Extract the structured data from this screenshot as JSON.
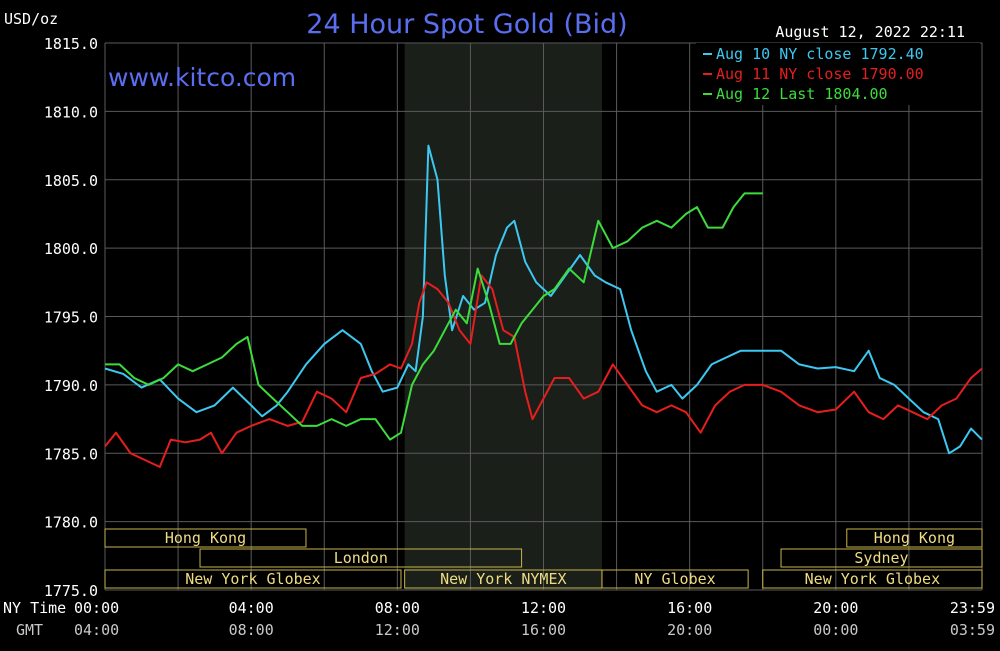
{
  "header": {
    "unit": "USD/oz",
    "title": "24 Hour Spot Gold (Bid)",
    "timestamp": "August 12, 2022 22:11",
    "watermark": "www.kitco.com"
  },
  "colors": {
    "background": "#000000",
    "grid": "#5a5a5a",
    "title": "#5a6ef0",
    "text": "#ffffff",
    "session_text": "#f0dc80",
    "session_line": "#c8b44a",
    "shaded_session": "#1a1f1a",
    "aug10": "#3cc8f0",
    "aug11": "#e61e1e",
    "aug12": "#3cdc3c"
  },
  "chart_data": {
    "type": "line",
    "title": "24 Hour Spot Gold (Bid)",
    "ylabel": "USD/oz",
    "xlabel": "",
    "ylim": [
      1775.0,
      1815.0
    ],
    "xlim": [
      0,
      24
    ],
    "yticks": [
      "1815.0",
      "1810.0",
      "1805.0",
      "1800.0",
      "1795.0",
      "1790.0",
      "1785.0",
      "1780.0",
      "1775.0"
    ],
    "grid": true,
    "legend_position": "top-right",
    "x_axis_rows": [
      {
        "label": "NY Time",
        "ticks": [
          "00:00",
          "04:00",
          "08:00",
          "12:00",
          "16:00",
          "20:00",
          "23:59"
        ]
      },
      {
        "label": "GMT",
        "ticks": [
          "04:00",
          "08:00",
          "12:00",
          "16:00",
          "20:00",
          "00:00",
          "03:59"
        ]
      }
    ],
    "shaded_hours": [
      8.2,
      13.6
    ],
    "sessions": [
      {
        "label": "Hong Kong",
        "start": 0,
        "end": 5.5,
        "row": 1
      },
      {
        "label": "Hong Kong",
        "start": 20.3,
        "end": 24,
        "row": 1
      },
      {
        "label": "London",
        "start": 2.6,
        "end": 11.4,
        "row": 2
      },
      {
        "label": "Sydney",
        "start": 18.5,
        "end": 24,
        "row": 2
      },
      {
        "label": "New York Globex",
        "start": 0,
        "end": 8.1,
        "row": 3
      },
      {
        "label": "New York NYMEX",
        "start": 8.2,
        "end": 13.6,
        "row": 3
      },
      {
        "label": "NY Globex",
        "start": 13.6,
        "end": 17.6,
        "row": 3
      },
      {
        "label": "New York Globex",
        "start": 18.0,
        "end": 24,
        "row": 3
      }
    ],
    "series": [
      {
        "name": "Aug 10 NY close 1792.40",
        "color": "#3cc8f0",
        "points": [
          [
            0,
            1791.2
          ],
          [
            0.5,
            1790.8
          ],
          [
            1,
            1789.8
          ],
          [
            1.5,
            1790.4
          ],
          [
            2,
            1789.0
          ],
          [
            2.5,
            1788.0
          ],
          [
            3,
            1788.5
          ],
          [
            3.5,
            1789.8
          ],
          [
            4,
            1788.5
          ],
          [
            4.3,
            1787.7
          ],
          [
            4.7,
            1788.5
          ],
          [
            5,
            1789.5
          ],
          [
            5.5,
            1791.5
          ],
          [
            6,
            1793.0
          ],
          [
            6.5,
            1794.0
          ],
          [
            7,
            1793.0
          ],
          [
            7.3,
            1791.0
          ],
          [
            7.6,
            1789.5
          ],
          [
            8,
            1789.8
          ],
          [
            8.3,
            1791.5
          ],
          [
            8.5,
            1791.0
          ],
          [
            8.7,
            1795.0
          ],
          [
            8.85,
            1807.5
          ],
          [
            9.1,
            1805.0
          ],
          [
            9.3,
            1798.0
          ],
          [
            9.5,
            1794.0
          ],
          [
            9.8,
            1796.5
          ],
          [
            10.1,
            1795.5
          ],
          [
            10.4,
            1796.0
          ],
          [
            10.7,
            1799.5
          ],
          [
            11.0,
            1801.5
          ],
          [
            11.2,
            1802.0
          ],
          [
            11.5,
            1799.0
          ],
          [
            11.8,
            1797.5
          ],
          [
            12.2,
            1796.5
          ],
          [
            12.6,
            1798.0
          ],
          [
            13.0,
            1799.5
          ],
          [
            13.4,
            1798.0
          ],
          [
            13.7,
            1797.5
          ],
          [
            14.1,
            1797.0
          ],
          [
            14.4,
            1794.0
          ],
          [
            14.8,
            1791.0
          ],
          [
            15.1,
            1789.5
          ],
          [
            15.5,
            1790.0
          ],
          [
            15.8,
            1789.0
          ],
          [
            16.2,
            1790.0
          ],
          [
            16.6,
            1791.5
          ],
          [
            17.0,
            1792.0
          ],
          [
            17.4,
            1792.5
          ],
          [
            18.0,
            1792.5
          ],
          [
            18.5,
            1792.5
          ],
          [
            19.0,
            1791.5
          ],
          [
            19.5,
            1791.2
          ],
          [
            20.0,
            1791.3
          ],
          [
            20.5,
            1791.0
          ],
          [
            20.9,
            1792.5
          ],
          [
            21.2,
            1790.5
          ],
          [
            21.6,
            1790.0
          ],
          [
            22.0,
            1789.0
          ],
          [
            22.4,
            1788.0
          ],
          [
            22.8,
            1787.5
          ],
          [
            23.1,
            1785.0
          ],
          [
            23.4,
            1785.5
          ],
          [
            23.7,
            1786.8
          ],
          [
            24.0,
            1786.0
          ]
        ]
      },
      {
        "name": "Aug 11 NY close 1790.00",
        "color": "#e61e1e",
        "points": [
          [
            0,
            1785.5
          ],
          [
            0.3,
            1786.5
          ],
          [
            0.7,
            1785.0
          ],
          [
            1.1,
            1784.5
          ],
          [
            1.5,
            1784.0
          ],
          [
            1.8,
            1786.0
          ],
          [
            2.2,
            1785.8
          ],
          [
            2.6,
            1786.0
          ],
          [
            2.9,
            1786.5
          ],
          [
            3.2,
            1785.0
          ],
          [
            3.6,
            1786.5
          ],
          [
            4,
            1787.0
          ],
          [
            4.5,
            1787.5
          ],
          [
            5,
            1787.0
          ],
          [
            5.4,
            1787.3
          ],
          [
            5.8,
            1789.5
          ],
          [
            6.2,
            1789.0
          ],
          [
            6.6,
            1788.0
          ],
          [
            7.0,
            1790.5
          ],
          [
            7.4,
            1790.8
          ],
          [
            7.8,
            1791.5
          ],
          [
            8.1,
            1791.2
          ],
          [
            8.4,
            1793.0
          ],
          [
            8.6,
            1796.0
          ],
          [
            8.8,
            1797.5
          ],
          [
            9.1,
            1797.0
          ],
          [
            9.4,
            1796.0
          ],
          [
            9.7,
            1794.0
          ],
          [
            10.0,
            1793.0
          ],
          [
            10.3,
            1798.0
          ],
          [
            10.6,
            1797.0
          ],
          [
            10.9,
            1794.0
          ],
          [
            11.2,
            1793.5
          ],
          [
            11.5,
            1789.5
          ],
          [
            11.7,
            1787.5
          ],
          [
            12.0,
            1789.0
          ],
          [
            12.3,
            1790.5
          ],
          [
            12.7,
            1790.5
          ],
          [
            13.1,
            1789.0
          ],
          [
            13.5,
            1789.5
          ],
          [
            13.9,
            1791.5
          ],
          [
            14.3,
            1790.0
          ],
          [
            14.7,
            1788.5
          ],
          [
            15.1,
            1788.0
          ],
          [
            15.5,
            1788.5
          ],
          [
            15.9,
            1788.0
          ],
          [
            16.3,
            1786.5
          ],
          [
            16.7,
            1788.5
          ],
          [
            17.1,
            1789.5
          ],
          [
            17.5,
            1790.0
          ],
          [
            18.0,
            1790.0
          ],
          [
            18.5,
            1789.5
          ],
          [
            19.0,
            1788.5
          ],
          [
            19.5,
            1788.0
          ],
          [
            20.0,
            1788.2
          ],
          [
            20.5,
            1789.5
          ],
          [
            20.9,
            1788.0
          ],
          [
            21.3,
            1787.5
          ],
          [
            21.7,
            1788.5
          ],
          [
            22.1,
            1788.0
          ],
          [
            22.5,
            1787.5
          ],
          [
            22.9,
            1788.5
          ],
          [
            23.3,
            1789.0
          ],
          [
            23.7,
            1790.5
          ],
          [
            24.0,
            1791.2
          ]
        ]
      },
      {
        "name": "Aug 12 Last 1804.00",
        "color": "#3cdc3c",
        "points": [
          [
            0,
            1791.5
          ],
          [
            0.4,
            1791.5
          ],
          [
            0.8,
            1790.5
          ],
          [
            1.2,
            1790.0
          ],
          [
            1.6,
            1790.5
          ],
          [
            2.0,
            1791.5
          ],
          [
            2.4,
            1791.0
          ],
          [
            2.8,
            1791.5
          ],
          [
            3.2,
            1792.0
          ],
          [
            3.6,
            1793.0
          ],
          [
            3.9,
            1793.5
          ],
          [
            4.2,
            1790.0
          ],
          [
            4.6,
            1789.0
          ],
          [
            5.0,
            1788.0
          ],
          [
            5.4,
            1787.0
          ],
          [
            5.8,
            1787.0
          ],
          [
            6.2,
            1787.5
          ],
          [
            6.6,
            1787.0
          ],
          [
            7.0,
            1787.5
          ],
          [
            7.4,
            1787.5
          ],
          [
            7.8,
            1786.0
          ],
          [
            8.1,
            1786.5
          ],
          [
            8.4,
            1790.0
          ],
          [
            8.7,
            1791.5
          ],
          [
            9.0,
            1792.5
          ],
          [
            9.3,
            1794.0
          ],
          [
            9.6,
            1795.5
          ],
          [
            9.9,
            1794.5
          ],
          [
            10.2,
            1798.5
          ],
          [
            10.5,
            1796.0
          ],
          [
            10.8,
            1793.0
          ],
          [
            11.1,
            1793.0
          ],
          [
            11.4,
            1794.5
          ],
          [
            11.7,
            1795.5
          ],
          [
            12.0,
            1796.5
          ],
          [
            12.3,
            1797.0
          ],
          [
            12.7,
            1798.5
          ],
          [
            13.1,
            1797.5
          ],
          [
            13.5,
            1802.0
          ],
          [
            13.9,
            1800.0
          ],
          [
            14.3,
            1800.5
          ],
          [
            14.7,
            1801.5
          ],
          [
            15.1,
            1802.0
          ],
          [
            15.5,
            1801.5
          ],
          [
            15.9,
            1802.5
          ],
          [
            16.2,
            1803.0
          ],
          [
            16.5,
            1801.5
          ],
          [
            16.9,
            1801.5
          ],
          [
            17.2,
            1803.0
          ],
          [
            17.5,
            1804.0
          ],
          [
            17.8,
            1804.0
          ],
          [
            18.0,
            1804.0
          ]
        ]
      }
    ]
  }
}
